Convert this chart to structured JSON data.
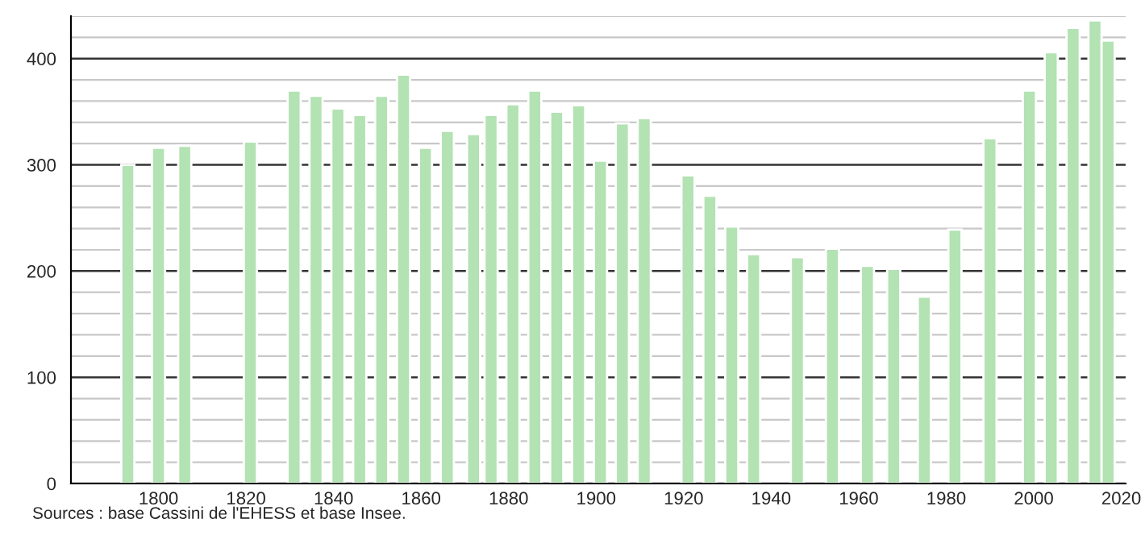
{
  "chart_data": {
    "type": "bar",
    "color": "#b3e2b3",
    "x": [
      1793,
      1800,
      1806,
      1821,
      1831,
      1836,
      1841,
      1846,
      1851,
      1856,
      1861,
      1866,
      1872,
      1876,
      1881,
      1886,
      1891,
      1896,
      1901,
      1906,
      1911,
      1921,
      1926,
      1931,
      1936,
      1946,
      1954,
      1962,
      1968,
      1975,
      1982,
      1990,
      1999,
      2004,
      2009,
      2014,
      2017
    ],
    "values": [
      300,
      316,
      318,
      322,
      370,
      365,
      353,
      347,
      365,
      385,
      316,
      332,
      329,
      347,
      357,
      370,
      350,
      356,
      304,
      339,
      344,
      290,
      271,
      242,
      216,
      213,
      221,
      205,
      202,
      176,
      239,
      325,
      370,
      406,
      429,
      436,
      417
    ],
    "xlim": [
      1780,
      2021
    ],
    "xticks": [
      1800,
      1820,
      1840,
      1860,
      1880,
      1900,
      1920,
      1940,
      1960,
      1980,
      2000,
      2020
    ],
    "ylim": [
      0,
      440
    ],
    "yticks": [
      0,
      {
        "value": 20,
        "label": null
      },
      {
        "value": 40,
        "label": null
      },
      {
        "value": 60,
        "label": null
      },
      {
        "value": 80,
        "label": null
      },
      100,
      {
        "value": 120,
        "label": null
      },
      {
        "value": 140,
        "label": null
      },
      {
        "value": 160,
        "label": null
      },
      {
        "value": 180,
        "label": null
      },
      200,
      {
        "value": 220,
        "label": null
      },
      {
        "value": 240,
        "label": null
      },
      {
        "value": 260,
        "label": null
      },
      {
        "value": 280,
        "label": null
      },
      300,
      {
        "value": 320,
        "label": null
      },
      {
        "value": 340,
        "label": null
      },
      {
        "value": 360,
        "label": null
      },
      {
        "value": 380,
        "label": null
      },
      400,
      {
        "value": 420,
        "label": null
      },
      {
        "value": 440,
        "label": null
      }
    ],
    "grid": "y",
    "annotations": [
      "Sources : base Cassini de l'EHESS et base Insee."
    ]
  }
}
